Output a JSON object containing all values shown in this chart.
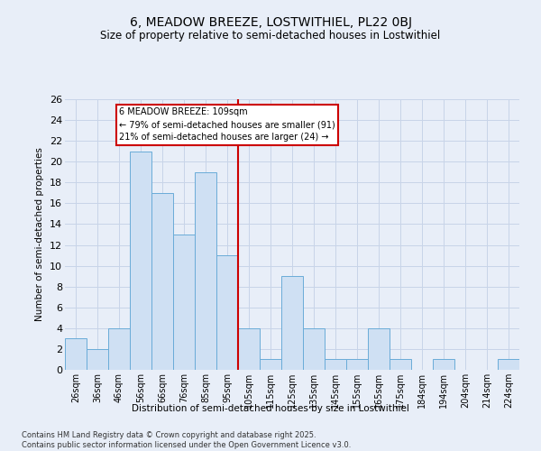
{
  "title": "6, MEADOW BREEZE, LOSTWITHIEL, PL22 0BJ",
  "subtitle": "Size of property relative to semi-detached houses in Lostwithiel",
  "xlabel": "Distribution of semi-detached houses by size in Lostwithiel",
  "ylabel": "Number of semi-detached properties",
  "bar_color": "#cfe0f3",
  "bar_edge_color": "#6aacd8",
  "categories": [
    "26sqm",
    "36sqm",
    "46sqm",
    "56sqm",
    "66sqm",
    "76sqm",
    "85sqm",
    "95sqm",
    "105sqm",
    "115sqm",
    "125sqm",
    "135sqm",
    "145sqm",
    "155sqm",
    "165sqm",
    "175sqm",
    "184sqm",
    "194sqm",
    "204sqm",
    "214sqm",
    "224sqm"
  ],
  "values": [
    3,
    2,
    4,
    21,
    17,
    13,
    19,
    11,
    4,
    1,
    9,
    4,
    1,
    1,
    4,
    1,
    0,
    1,
    0,
    0,
    1
  ],
  "ylim": [
    0,
    26
  ],
  "yticks": [
    0,
    2,
    4,
    6,
    8,
    10,
    12,
    14,
    16,
    18,
    20,
    22,
    24,
    26
  ],
  "reference_line_index": 8,
  "annotation_title": "6 MEADOW BREEZE: 109sqm",
  "annotation_line1": "← 79% of semi-detached houses are smaller (91)",
  "annotation_line2": "21% of semi-detached houses are larger (24) →",
  "annotation_box_facecolor": "#ffffff",
  "annotation_box_edgecolor": "#cc0000",
  "grid_color": "#c8d4e8",
  "background_color": "#e8eef8",
  "title_fontsize": 10,
  "subtitle_fontsize": 8.5,
  "footer_text": "Contains HM Land Registry data © Crown copyright and database right 2025.\nContains public sector information licensed under the Open Government Licence v3.0."
}
